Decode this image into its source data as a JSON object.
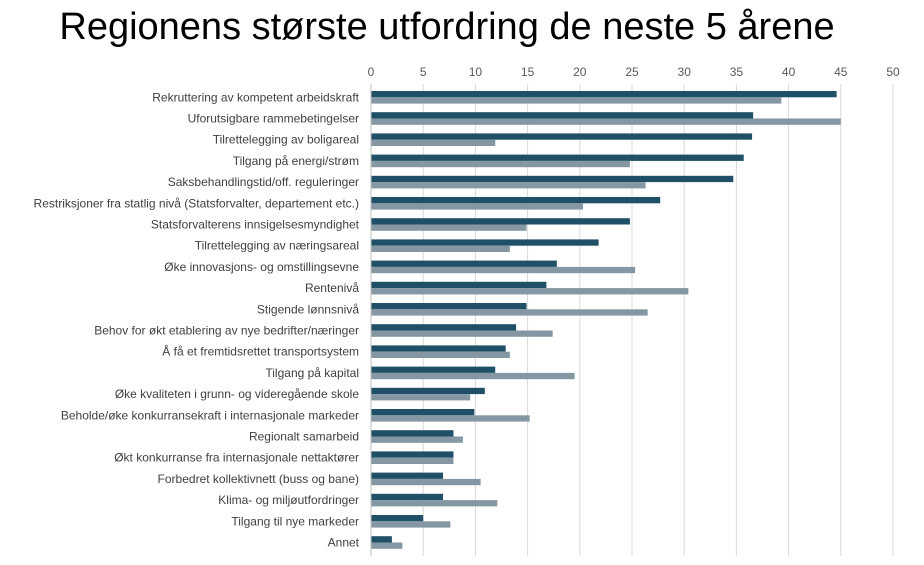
{
  "chart_data": {
    "type": "bar",
    "orientation": "horizontal",
    "title": "Regionens største utfordring de neste 5 årene",
    "xlim": [
      0,
      50
    ],
    "xticks": [
      0,
      5,
      10,
      15,
      20,
      25,
      30,
      35,
      40,
      45,
      50
    ],
    "x_axis_position": "top",
    "grid": true,
    "legend": "none",
    "categories": [
      "Rekruttering av kompetent arbeidskraft",
      "Uforutsigbare rammebetingelser",
      "Tilrettelegging av boligareal",
      "Tilgang på energi/strøm",
      "Saksbehandlingstid/off. reguleringer",
      "Restriksjoner fra statlig nivå (Statsforvalter, departement etc.)",
      "Statsforvalterens innsigelsesmyndighet",
      "Tilrettelegging av næringsareal",
      "Øke innovasjons- og omstillingsevne",
      "Rentenivå",
      "Stigende lønnsnivå",
      "Behov for økt etablering av nye bedrifter/næringer",
      "Å få et fremtidsrettet transportsystem",
      "Tilgang på kapital",
      "Øke kvaliteten i grunn- og videregående skole",
      "Beholde/øke konkurransekraft i internasjonale markeder",
      "Regionalt samarbeid",
      "Økt konkurranse fra internasjonale nettaktører",
      "Forbedret kollektivnett (buss og bane)",
      "Klima- og miljøutfordringer",
      "Tilgang til nye markeder",
      "Annet"
    ],
    "series": [
      {
        "color": "#1f5068",
        "values": [
          44.6,
          36.6,
          36.5,
          35.7,
          34.7,
          27.7,
          24.8,
          21.8,
          17.8,
          16.8,
          14.9,
          13.9,
          12.9,
          11.9,
          10.9,
          9.9,
          7.9,
          7.9,
          6.9,
          6.9,
          5.0,
          2.0
        ]
      },
      {
        "color": "#8497a3",
        "values": [
          39.3,
          45.0,
          11.9,
          24.8,
          26.3,
          20.3,
          14.9,
          13.3,
          25.3,
          30.4,
          26.5,
          17.4,
          13.3,
          19.5,
          9.5,
          15.2,
          8.8,
          7.9,
          10.5,
          12.1,
          7.6,
          3.0
        ]
      }
    ]
  }
}
